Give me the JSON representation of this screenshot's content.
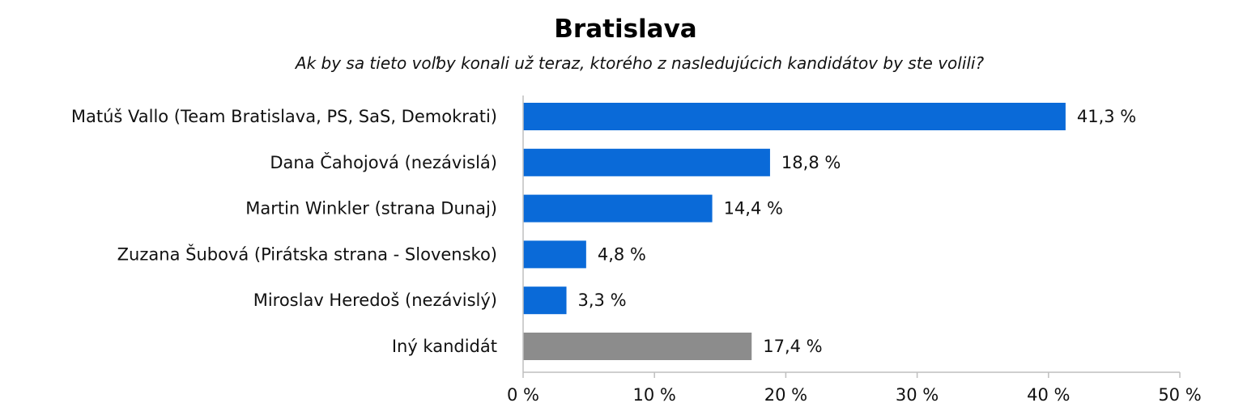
{
  "chart_data": {
    "type": "bar",
    "orientation": "horizontal",
    "title": "Bratislava",
    "subtitle": "Ak by sa tieto voľby konali už teraz, ktorého z nasledujúcich kandidátov by ste volili?",
    "categories": [
      "Matúš Vallo (Team Bratislava, PS, SaS, Demokrati)",
      "Dana Čahojová (nezávislá)",
      "Martin Winkler (strana Dunaj)",
      "Zuzana Šubová (Pirátska strana - Slovensko)",
      "Miroslav Heredoš (nezávislý)",
      "Iný kandidát"
    ],
    "values": [
      41.3,
      18.8,
      14.4,
      4.8,
      3.3,
      17.4
    ],
    "value_labels": [
      "41,3 %",
      "18,8 %",
      "14,4 %",
      "4,8 %",
      "3,3 %",
      "17,4 %"
    ],
    "bar_colors": [
      "#0a6ad8",
      "#0a6ad8",
      "#0a6ad8",
      "#0a6ad8",
      "#0a6ad8",
      "#8c8c8c"
    ],
    "x_ticks": [
      0,
      10,
      20,
      30,
      40,
      50
    ],
    "x_tick_labels": [
      "0 %",
      "10 %",
      "20 %",
      "30 %",
      "40 %",
      "50 %"
    ],
    "xlim": [
      0,
      50
    ],
    "xlabel": "",
    "ylabel": "",
    "grid": false,
    "legend": "none"
  }
}
